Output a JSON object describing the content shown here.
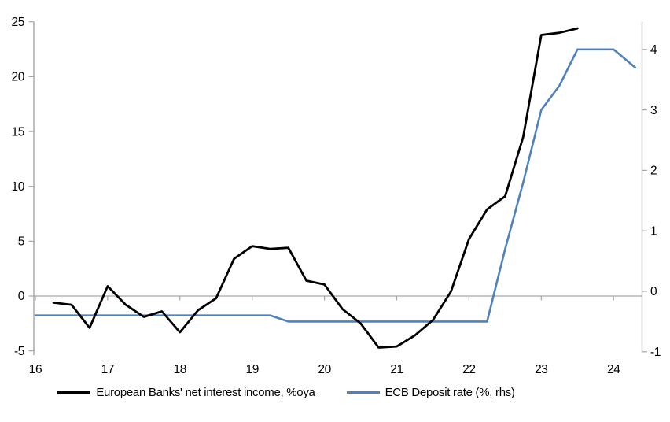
{
  "chart_data": {
    "type": "line",
    "title": "",
    "x_axis": {
      "ticks": [
        16,
        17,
        18,
        19,
        20,
        21,
        22,
        23,
        24
      ],
      "min": 16,
      "max": 24.4
    },
    "y_axis_left": {
      "ticks": [
        -5,
        0,
        5,
        10,
        15,
        20,
        25
      ],
      "min": -5,
      "max": 25,
      "label": ""
    },
    "y_axis_right": {
      "ticks": [
        -1,
        0,
        1,
        2,
        3,
        4
      ],
      "min": -1,
      "max": 4.45,
      "label": ""
    },
    "zero_gridline": true,
    "legend_position": "bottom",
    "series": [
      {
        "id": "nii-line",
        "name": "European Banks' net interest income, %oya",
        "axis": "left",
        "color": "#000000",
        "points": [
          [
            16.25,
            -0.6
          ],
          [
            16.5,
            -0.8
          ],
          [
            16.75,
            -2.9
          ],
          [
            17.0,
            0.9
          ],
          [
            17.25,
            -0.8
          ],
          [
            17.5,
            -1.9
          ],
          [
            17.75,
            -1.4
          ],
          [
            18.0,
            -3.3
          ],
          [
            18.25,
            -1.3
          ],
          [
            18.5,
            -0.2
          ],
          [
            18.75,
            3.4
          ],
          [
            19.0,
            4.55
          ],
          [
            19.25,
            4.3
          ],
          [
            19.5,
            4.4
          ],
          [
            19.75,
            1.4
          ],
          [
            20.0,
            1.05
          ],
          [
            20.25,
            -1.2
          ],
          [
            20.5,
            -2.5
          ],
          [
            20.75,
            -4.7
          ],
          [
            21.0,
            -4.6
          ],
          [
            21.25,
            -3.6
          ],
          [
            21.5,
            -2.2
          ],
          [
            21.75,
            0.4
          ],
          [
            22.0,
            5.2
          ],
          [
            22.25,
            7.9
          ],
          [
            22.5,
            9.1
          ],
          [
            22.75,
            14.5
          ],
          [
            23.0,
            23.8
          ],
          [
            23.25,
            24.0
          ],
          [
            23.5,
            24.4
          ]
        ]
      },
      {
        "id": "ecb-line",
        "name": "ECB Deposit rate (%, rhs)",
        "axis": "right",
        "color": "#4F81BD",
        "points": [
          [
            16.0,
            -0.4
          ],
          [
            19.25,
            -0.4
          ],
          [
            19.5,
            -0.5
          ],
          [
            22.25,
            -0.5
          ],
          [
            22.5,
            0.7
          ],
          [
            22.75,
            1.8
          ],
          [
            23.0,
            3.0
          ],
          [
            23.25,
            3.4
          ],
          [
            23.5,
            4.0
          ],
          [
            23.75,
            4.0
          ],
          [
            24.0,
            4.0
          ],
          [
            24.3,
            3.7
          ]
        ]
      }
    ]
  },
  "legend": {
    "items": [
      {
        "label": "European Banks' net interest income, %oya",
        "color": "#000000"
      },
      {
        "label": "ECB Deposit rate (%, rhs)",
        "color": "#4F81BD"
      }
    ]
  },
  "colors": {
    "axis_line": "#A6A6A6",
    "zero_line": "#A6A6A6",
    "text": "#000000",
    "background": "#FFFFFF"
  }
}
